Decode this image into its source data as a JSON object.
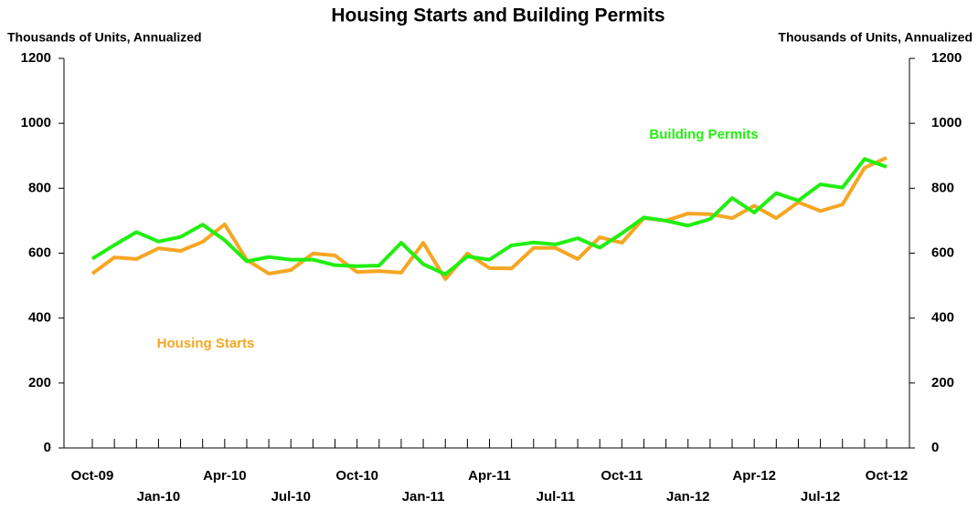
{
  "chart_data": {
    "type": "line",
    "title": "Housing Starts and Building Permits",
    "y_label": "Thousands of Units, Annualized",
    "y2_label": "Thousands of Units, Annualized",
    "categories": [
      "Oct-09",
      null,
      null,
      "Jan-10",
      null,
      null,
      "Apr-10",
      null,
      null,
      "Jul-10",
      null,
      null,
      "Oct-10",
      null,
      null,
      "Jan-11",
      null,
      null,
      "Apr-11",
      null,
      null,
      "Jul-11",
      null,
      null,
      "Oct-11",
      null,
      null,
      "Jan-12",
      null,
      null,
      "Apr-12",
      null,
      null,
      "Jul-12",
      null,
      null,
      "Oct-12"
    ],
    "series": [
      {
        "name": "Building Permits",
        "color": "#22ee11",
        "values": [
          583,
          625,
          665,
          636,
          650,
          688,
          640,
          575,
          588,
          580,
          580,
          563,
          560,
          562,
          632,
          566,
          535,
          590,
          580,
          624,
          633,
          627,
          646,
          617,
          661,
          710,
          700,
          685,
          705,
          770,
          725,
          785,
          762,
          812,
          802,
          890,
          866
        ]
      },
      {
        "name": "Housing Starts",
        "color": "#f5a623",
        "values": [
          537,
          587,
          582,
          615,
          607,
          635,
          689,
          579,
          537,
          548,
          599,
          593,
          542,
          545,
          540,
          632,
          520,
          599,
          554,
          553,
          616,
          616,
          582,
          649,
          632,
          708,
          700,
          722,
          720,
          708,
          746,
          708,
          757,
          730,
          750,
          863,
          894
        ]
      }
    ],
    "ylim": [
      0,
      1200
    ],
    "yticks": [
      0,
      200,
      400,
      600,
      800,
      1000,
      1200
    ],
    "y2lim": [
      0,
      1200
    ],
    "y2ticks": [
      0,
      200,
      400,
      600,
      800,
      1000,
      1200
    ]
  }
}
